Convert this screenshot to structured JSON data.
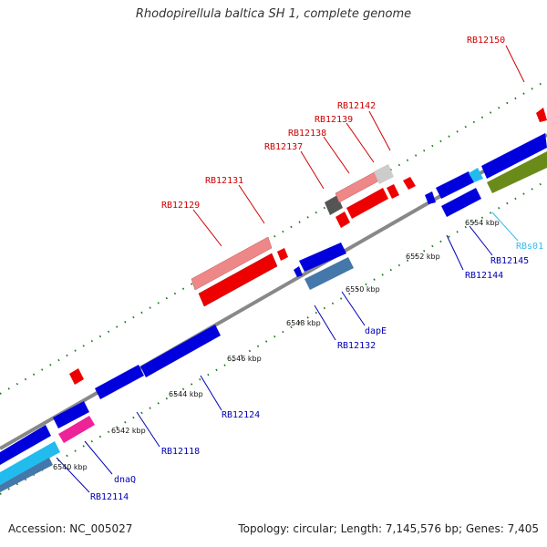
{
  "title": "Rhodopirellula baltica SH 1, complete genome",
  "footer": {
    "accession": "Accession: NC_005027",
    "summary": "Topology: circular; Length: 7,145,576 bp; Genes: 7,405"
  },
  "colors": {
    "backbone": "#888888",
    "tick_green": "#1a7a1a",
    "top_red": "#ee0000",
    "top_pink": "#ee8888",
    "top_grey": "#cccccc",
    "top_dark": "#555555",
    "bottom_blue": "#0000dd",
    "bottom_steel": "#4477aa",
    "bottom_magenta": "#ee2299",
    "bottom_cyan": "#22bbee",
    "bottom_olive": "#6a8a1a",
    "label_top": "#d00000",
    "label_bottom": "#0000b4",
    "label_rna": "#33bbee"
  },
  "scale_labels": [
    {
      "text": "6540 kbp",
      "kbp": 6540
    },
    {
      "text": "6542 kbp",
      "kbp": 6542
    },
    {
      "text": "6544 kbp",
      "kbp": 6544
    },
    {
      "text": "6546 kbp",
      "kbp": 6546
    },
    {
      "text": "6548 kbp",
      "kbp": 6548
    },
    {
      "text": "6550 kbp",
      "kbp": 6550
    },
    {
      "text": "6552 kbp",
      "kbp": 6552
    },
    {
      "text": "6554 kbp",
      "kbp": 6554
    }
  ],
  "gene_labels_top": [
    "RB12150",
    "RB12142",
    "RB12139",
    "RB12138",
    "RB12137",
    "RB12131",
    "RB12129"
  ],
  "gene_labels_bottom": [
    "RBs01",
    "RB12145",
    "RB12144",
    "RB12132",
    "dapE",
    "RB12124",
    "RB12118",
    "dnaQ",
    "RB12114"
  ]
}
